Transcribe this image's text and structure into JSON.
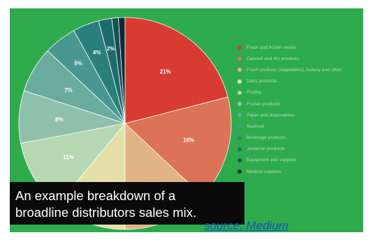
{
  "chart_data": {
    "type": "pie",
    "categories": [
      "Fresh and frozen meats",
      "Canned and dry products",
      "Fresh produce (vegetables), bakery and other",
      "Dairy products",
      "Poultry",
      "Frozen products",
      "Paper and disposables",
      "Seafood",
      "Beverage products",
      "Janitorial products",
      "Equipment and supplies",
      "Medical supplies"
    ],
    "values": [
      21,
      16,
      13,
      11,
      11,
      8,
      7,
      5,
      4,
      2,
      1,
      1
    ],
    "value_labels": [
      "21%",
      "16%",
      "13%",
      "11%",
      "11%",
      "8%",
      "7%",
      "5%",
      "4%",
      "2%",
      "",
      ""
    ],
    "colors": [
      "#d83b32",
      "#dd7356",
      "#e1b386",
      "#e5dfaa",
      "#b6d7b2",
      "#8fc0ac",
      "#6aab9f",
      "#4a9792",
      "#2a7f7a",
      "#1d6b6a",
      "#164f54",
      "#0d2b33"
    ],
    "legend_position": "right",
    "title": ""
  },
  "caption": {
    "line1": "An example breakdown of a",
    "line2": "broadline distributors sales mix."
  },
  "source_link": "source: Medium",
  "colors": {
    "background": "#2eab4c",
    "caption_bg": "#0a0a0a",
    "link": "#1a4fc8"
  }
}
